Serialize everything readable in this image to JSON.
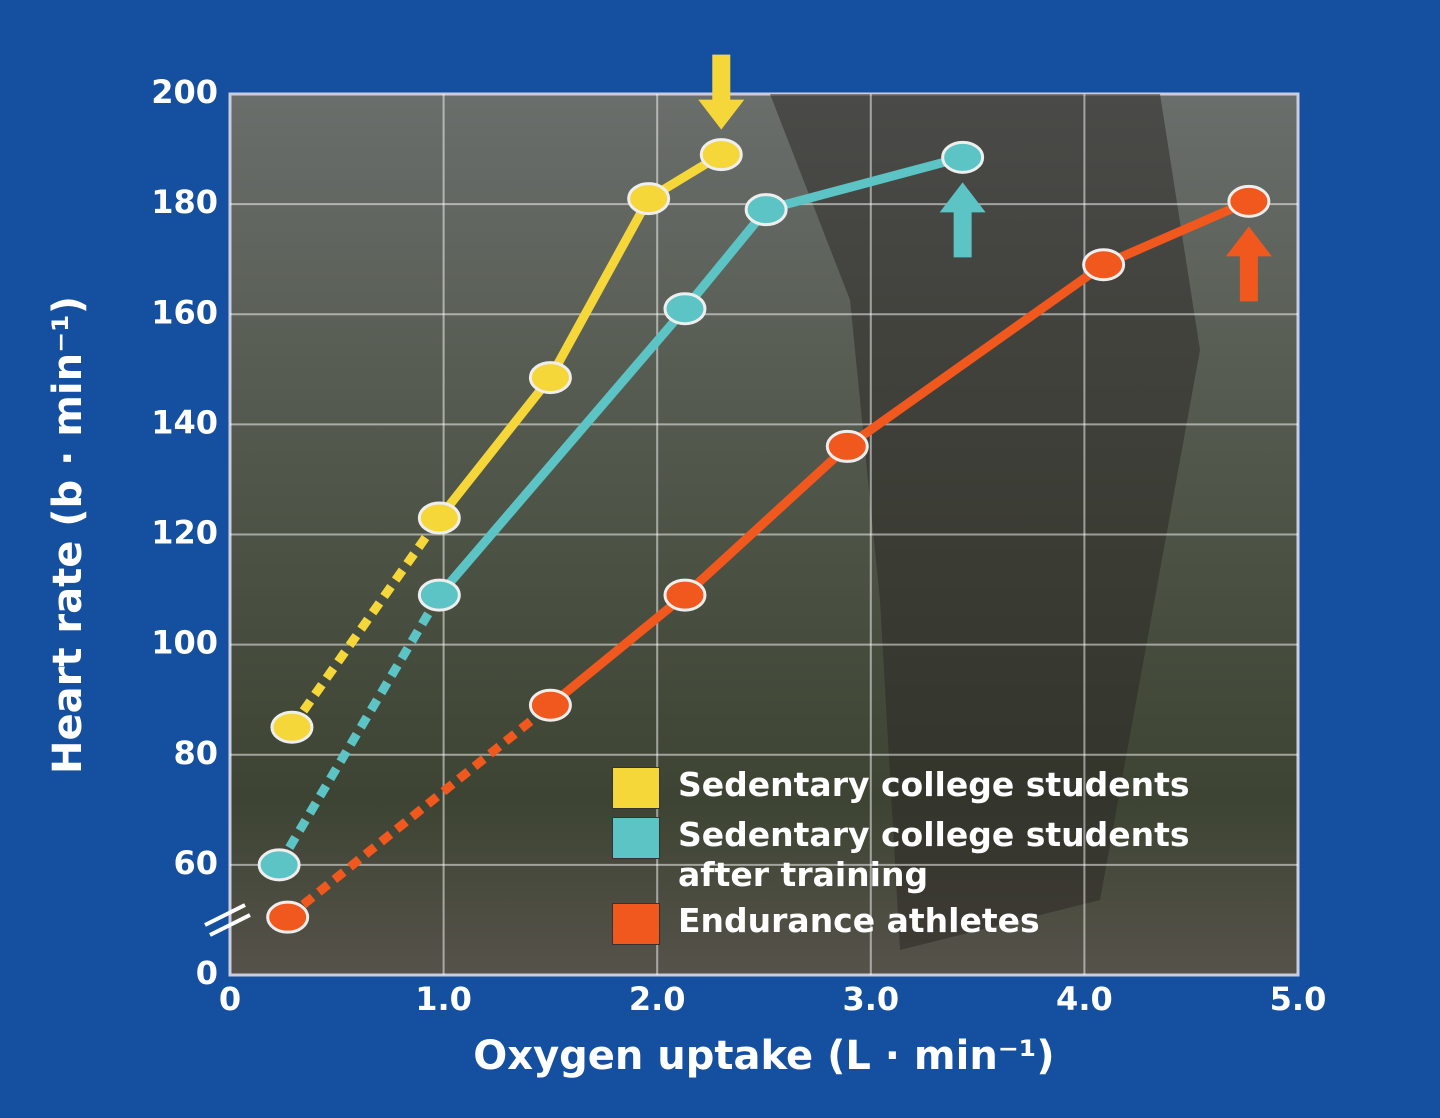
{
  "chart_data": {
    "type": "line",
    "x_label": "Oxygen uptake (L · min⁻¹)",
    "y_label": "Heart rate (b · min⁻¹)",
    "xlim": [
      0,
      5
    ],
    "xticks": [
      0,
      {
        "value": 1,
        "label": "1.0"
      },
      {
        "value": 2,
        "label": "2.0"
      },
      {
        "value": 3,
        "label": "3.0"
      },
      {
        "value": 4,
        "label": "4.0"
      },
      {
        "value": 5,
        "label": "5.0"
      }
    ],
    "ylim": [
      0,
      200
    ],
    "y_axis_break": [
      0,
      40
    ],
    "yticks": [
      0,
      60,
      80,
      100,
      120,
      140,
      160,
      180,
      200
    ],
    "grid": true,
    "legend": "lower right",
    "dashed_first_segment": true,
    "series": [
      {
        "name": "Sedentary college students",
        "color": "#f5d73a",
        "peak_arrow": "down",
        "x": [
          0.29,
          0.98,
          1.5,
          1.96,
          2.3
        ],
        "values": [
          85,
          123,
          148.5,
          181,
          189
        ]
      },
      {
        "name": "Sedentary college students after training",
        "color": "#5cc4c4",
        "peak_arrow": "up",
        "x": [
          0.23,
          0.98,
          2.13,
          2.51,
          3.43
        ],
        "values": [
          60,
          109,
          161,
          179,
          188.5
        ]
      },
      {
        "name": "Endurance athletes",
        "color": "#f0581e",
        "peak_arrow": "up",
        "x": [
          0.27,
          1.5,
          2.13,
          2.89,
          4.09,
          4.77
        ],
        "values": [
          50.5,
          89,
          109,
          136,
          169,
          180.5
        ]
      }
    ]
  }
}
